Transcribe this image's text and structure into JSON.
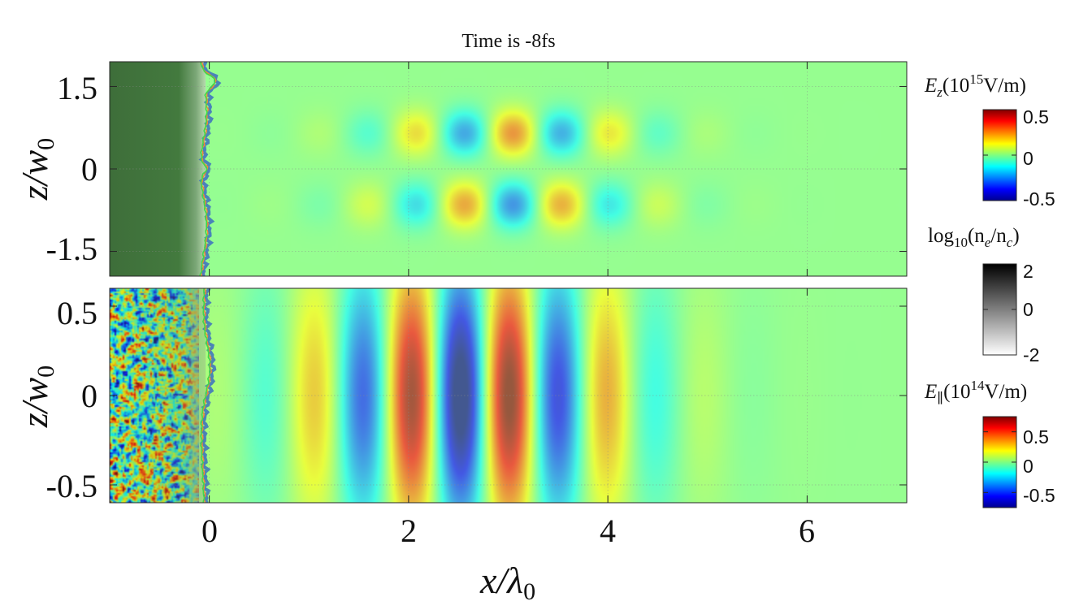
{
  "figure": {
    "title": "Time is -8fs"
  },
  "chart_data": [
    {
      "type": "heatmap",
      "name": "upper-panel",
      "field": "E_z",
      "xlabel": "x/λ0",
      "ylabel": "z/w0",
      "xlim": [
        -1.0,
        7.0
      ],
      "ylim": [
        -1.95,
        1.95
      ],
      "x_ticks": [
        0,
        2,
        4,
        6
      ],
      "x_tick_labels": [
        "0",
        "2",
        "4",
        "6"
      ],
      "y_ticks": [
        -1.5,
        0,
        1.5
      ],
      "y_tick_labels": [
        "-1.5",
        "0",
        "1.5"
      ],
      "grid": true,
      "surface_x_at_center": -0.05,
      "wave": {
        "k_x": 6.283,
        "amplitude_max": 0.28,
        "center_x": 3.0,
        "width_x": 1.35,
        "z_peaks": [
          0.65,
          -0.65
        ],
        "z_width": 0.42,
        "sign": "antisymmetric"
      }
    },
    {
      "type": "heatmap",
      "name": "lower-panel",
      "field": "E_parallel",
      "xlabel": "x/λ0",
      "ylabel": "z/w0",
      "xlim": [
        -1.0,
        7.0
      ],
      "ylim": [
        -0.6,
        0.6
      ],
      "x_ticks": [
        0,
        2,
        4,
        6
      ],
      "x_tick_labels": [
        "0",
        "2",
        "4",
        "6"
      ],
      "y_ticks": [
        -0.5,
        0,
        0.5
      ],
      "y_tick_labels": [
        "-0.5",
        "0",
        "0.5"
      ],
      "grid": true,
      "surface_x_at_center": -0.05,
      "wave": {
        "k_x": 6.283,
        "amplitude_max": 0.55,
        "center_x": 2.6,
        "width_x": 1.55,
        "z_width": 0.55,
        "sign": "symmetric"
      }
    }
  ],
  "colorbars": [
    {
      "name": "Ez",
      "label_main": "E",
      "label_sub": "z",
      "label_rest": "(10",
      "label_exp": "15",
      "label_unit": "V/m)",
      "colormap": "jet",
      "ticks": [
        0.5,
        0,
        -0.5
      ],
      "tick_labels": [
        "0.5",
        "0",
        "-0.5"
      ],
      "range": [
        -0.5,
        0.5
      ]
    },
    {
      "name": "log-density",
      "label_func": "log",
      "label_func_sub": "10",
      "label_rest": "(n",
      "label_sub1": "e",
      "label_mid": "/n",
      "label_sub2": "c",
      "label_end": ")",
      "colormap": "gray",
      "ticks": [
        2,
        0,
        -2
      ],
      "tick_labels": [
        "2",
        "0",
        "-2"
      ],
      "range": [
        -2,
        2
      ]
    },
    {
      "name": "E-parallel",
      "label_main": "E",
      "label_sub": "∥",
      "label_rest": "(10",
      "label_exp": "14",
      "label_unit": "V/m)",
      "colormap": "jet",
      "ticks": [
        0.5,
        0,
        -0.5
      ],
      "tick_labels": [
        "0.5",
        "0",
        "-0.5"
      ],
      "range": [
        -0.75,
        0.75
      ]
    }
  ],
  "colors": {
    "background_green": "#c0fcb0",
    "target_dark": "#3b6d38",
    "surface_blue": "#3c6fbf",
    "surface_green": "#41d84a",
    "surface_orange": "#f28a33"
  }
}
